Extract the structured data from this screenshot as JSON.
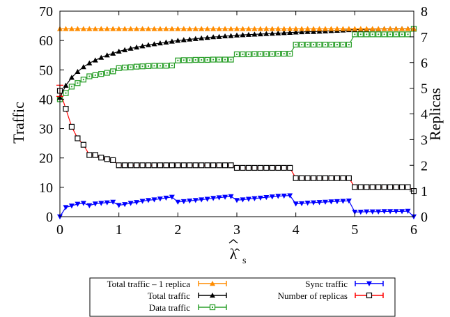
{
  "chart_data": {
    "type": "line",
    "xlabel": "λ̂",
    "xlabel_sub": "s",
    "ylabel_left": "Traffic",
    "ylabel_right": "Replicas",
    "xlim": [
      0,
      6
    ],
    "ylim_left": [
      0,
      70
    ],
    "ylim_right": [
      0,
      8
    ],
    "x_ticks": [
      "0",
      "1",
      "2",
      "3",
      "4",
      "5",
      "6"
    ],
    "y_left_ticks": [
      "0",
      "10",
      "20",
      "30",
      "40",
      "50",
      "60",
      "70"
    ],
    "y_right_ticks": [
      "0",
      "1",
      "2",
      "3",
      "4",
      "5",
      "6",
      "7",
      "8"
    ],
    "grid": false,
    "legend_placement": "bottom",
    "x": [
      0.0,
      0.1,
      0.2,
      0.3,
      0.4,
      0.5,
      0.6,
      0.7,
      0.8,
      0.9,
      1.0,
      1.1,
      1.2,
      1.3,
      1.4,
      1.5,
      1.6,
      1.7,
      1.8,
      1.9,
      2.0,
      2.1,
      2.2,
      2.3,
      2.4,
      2.5,
      2.6,
      2.7,
      2.8,
      2.9,
      3.0,
      3.1,
      3.2,
      3.3,
      3.4,
      3.5,
      3.6,
      3.7,
      3.8,
      3.9,
      4.0,
      4.1,
      4.2,
      4.3,
      4.4,
      4.5,
      4.6,
      4.7,
      4.8,
      4.9,
      5.0,
      5.1,
      5.2,
      5.3,
      5.4,
      5.5,
      5.6,
      5.7,
      5.8,
      5.9,
      6.0
    ],
    "series": [
      {
        "name": "Total traffic - 1 replica",
        "axis": "left",
        "color": "#ff8c00",
        "marker": "triangle-up",
        "values": [
          64,
          64,
          64,
          64,
          64,
          64,
          64,
          64,
          64,
          64,
          64,
          64,
          64,
          64,
          64,
          64,
          64,
          64,
          64,
          64,
          64,
          64,
          64,
          64,
          64,
          64,
          64,
          64,
          64,
          64,
          64,
          64,
          64,
          64,
          64,
          64,
          64,
          64,
          64,
          64,
          64,
          64,
          64,
          64,
          64,
          64,
          64,
          64,
          64,
          64,
          64,
          64,
          64,
          64,
          64,
          64,
          64,
          64,
          64,
          64,
          64
        ]
      },
      {
        "name": "Total traffic",
        "axis": "left",
        "color": "#000000",
        "marker": "triangle-up",
        "values": [
          40.6,
          44.7,
          47.4,
          49.4,
          51.0,
          52.3,
          53.3,
          54.2,
          55.0,
          55.6,
          56.3,
          56.8,
          57.3,
          57.7,
          58.1,
          58.5,
          58.8,
          59.1,
          59.4,
          59.7,
          60.0,
          60.2,
          60.4,
          60.6,
          60.8,
          61.0,
          61.2,
          61.3,
          61.5,
          61.6,
          61.8,
          61.9,
          62.0,
          62.1,
          62.2,
          62.3,
          62.4,
          62.5,
          62.6,
          62.7,
          62.8,
          62.9,
          63.0,
          63.0,
          63.1,
          63.2,
          63.3,
          63.4,
          63.5,
          63.6,
          63.7,
          63.8,
          63.8,
          63.9,
          63.9,
          64.0,
          64.0,
          64.0,
          64.0,
          64.0,
          64.0
        ]
      },
      {
        "name": "Data traffic",
        "axis": "left",
        "color": "#2ca02c",
        "marker": "square-dot",
        "values": [
          40.0,
          42.1,
          44.3,
          45.5,
          46.7,
          47.8,
          48.2,
          48.6,
          49.0,
          49.5,
          50.6,
          50.8,
          50.9,
          51.1,
          51.2,
          51.3,
          51.4,
          51.4,
          51.4,
          51.5,
          53.2,
          53.3,
          53.3,
          53.4,
          53.4,
          53.4,
          53.5,
          53.5,
          53.5,
          53.5,
          55.3,
          55.3,
          55.3,
          55.4,
          55.4,
          55.4,
          55.4,
          55.5,
          55.5,
          55.5,
          58.6,
          58.6,
          58.6,
          58.6,
          58.6,
          58.6,
          58.6,
          58.6,
          58.6,
          58.6,
          62.1,
          62.1,
          62.1,
          62.1,
          62.1,
          62.1,
          62.1,
          62.1,
          62.1,
          62.1,
          64.0
        ]
      },
      {
        "name": "Sync traffic",
        "axis": "left",
        "color": "#0000ff",
        "marker": "triangle-down",
        "values": [
          0.0,
          3.2,
          3.7,
          4.3,
          4.6,
          3.8,
          4.4,
          4.6,
          4.8,
          5.0,
          3.9,
          4.2,
          4.6,
          4.9,
          5.3,
          5.6,
          5.8,
          6.1,
          6.4,
          6.7,
          5.0,
          5.2,
          5.4,
          5.6,
          5.8,
          6.0,
          6.3,
          6.5,
          6.7,
          6.9,
          5.6,
          5.8,
          6.0,
          6.2,
          6.4,
          6.6,
          6.8,
          7.0,
          7.1,
          7.2,
          4.4,
          4.5,
          4.7,
          4.8,
          4.9,
          5.0,
          5.1,
          5.2,
          5.3,
          5.4,
          1.6,
          1.6,
          1.7,
          1.7,
          1.7,
          1.8,
          1.8,
          1.8,
          1.8,
          1.9,
          0.0
        ]
      },
      {
        "name": "Number of replicas",
        "axis": "right",
        "color": "#ff0000",
        "marker": "square",
        "values": [
          4.9,
          4.2,
          3.5,
          3.05,
          2.8,
          2.4,
          2.4,
          2.3,
          2.24,
          2.2,
          2.0,
          2.0,
          2.0,
          2.0,
          2.0,
          2.0,
          2.0,
          2.0,
          2.0,
          2.0,
          2.0,
          2.0,
          2.0,
          2.0,
          2.0,
          2.0,
          2.0,
          2.0,
          2.0,
          2.0,
          1.9,
          1.9,
          1.9,
          1.9,
          1.9,
          1.9,
          1.9,
          1.9,
          1.9,
          1.9,
          1.5,
          1.5,
          1.5,
          1.5,
          1.5,
          1.5,
          1.5,
          1.5,
          1.5,
          1.5,
          1.15,
          1.15,
          1.15,
          1.15,
          1.15,
          1.15,
          1.15,
          1.15,
          1.15,
          1.15,
          1.0
        ]
      }
    ],
    "legend_labels": {
      "total_one": "Total traffic – 1 replica",
      "total": "Total traffic",
      "data": "Data traffic",
      "sync": "Sync traffic",
      "replicas": "Number of replicas"
    }
  }
}
